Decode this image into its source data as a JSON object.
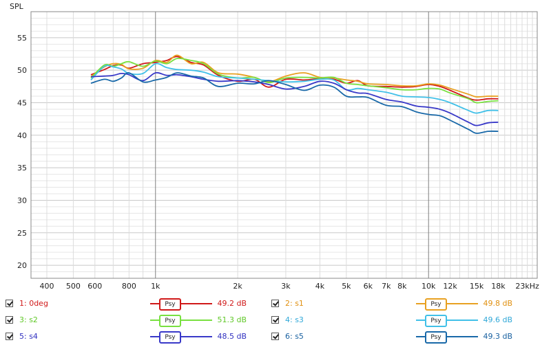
{
  "chart_data": {
    "type": "line",
    "ylabel": "SPL",
    "xlabel": "",
    "x_scale": "log",
    "xlim": [
      350,
      25000
    ],
    "ylim": [
      18,
      59
    ],
    "y_ticks": [
      20,
      25,
      30,
      35,
      40,
      45,
      50,
      55
    ],
    "x_tick_labels": [
      {
        "f": 400,
        "t": "400"
      },
      {
        "f": 500,
        "t": "500"
      },
      {
        "f": 600,
        "t": "600"
      },
      {
        "f": 800,
        "t": "800"
      },
      {
        "f": 1000,
        "t": "1k"
      },
      {
        "f": 2000,
        "t": "2k"
      },
      {
        "f": 3000,
        "t": "3k"
      },
      {
        "f": 4000,
        "t": "4k"
      },
      {
        "f": 5000,
        "t": "5k"
      },
      {
        "f": 6000,
        "t": "6k"
      },
      {
        "f": 7000,
        "t": "7k"
      },
      {
        "f": 8000,
        "t": "8k"
      },
      {
        "f": 10000,
        "t": "10k"
      },
      {
        "f": 12000,
        "t": "12k"
      },
      {
        "f": 15000,
        "t": "15k"
      },
      {
        "f": 18000,
        "t": "18k"
      },
      {
        "f": 23000,
        "t": "23kHz"
      }
    ],
    "grid": true,
    "series": [
      {
        "name": "1: 0deg",
        "color": "#d01818",
        "value_label": "49.2 dB",
        "x": [
          580,
          650,
          700,
          750,
          800,
          900,
          1000,
          1100,
          1200,
          1350,
          1500,
          1700,
          2000,
          2300,
          2600,
          3000,
          3500,
          4000,
          4500,
          5000,
          5500,
          6000,
          7000,
          8000,
          9000,
          10000,
          11000,
          12000,
          14000,
          15000,
          16500,
          18000
        ],
        "y": [
          49.3,
          50.1,
          50.7,
          50.8,
          50.3,
          51.0,
          51.2,
          51.5,
          52.1,
          51.2,
          50.8,
          49.2,
          48.3,
          48.6,
          47.4,
          48.6,
          48.5,
          48.7,
          48.6,
          48.0,
          48.4,
          47.6,
          47.5,
          47.4,
          47.5,
          47.8,
          47.5,
          46.9,
          45.7,
          45.4,
          45.6,
          45.6
        ]
      },
      {
        "name": "2: s1",
        "color": "#e8a020",
        "value_label": "49.8 dB",
        "x": [
          580,
          650,
          700,
          750,
          800,
          900,
          1000,
          1100,
          1200,
          1350,
          1500,
          1700,
          2000,
          2300,
          2600,
          3000,
          3500,
          4000,
          4500,
          5000,
          5500,
          6000,
          7000,
          8000,
          9000,
          10000,
          11000,
          12000,
          14000,
          15000,
          16500,
          18000
        ],
        "y": [
          49.0,
          50.5,
          51.0,
          50.9,
          50.2,
          50.3,
          51.5,
          51.2,
          52.3,
          51.0,
          51.2,
          49.6,
          49.4,
          48.9,
          48.2,
          49.1,
          49.6,
          48.9,
          48.8,
          48.5,
          48.3,
          47.9,
          47.8,
          47.6,
          47.6,
          47.9,
          47.7,
          47.2,
          46.3,
          45.9,
          46.0,
          46.0
        ]
      },
      {
        "name": "3: s2",
        "color": "#78e040",
        "value_label": "51.3 dB",
        "x": [
          580,
          650,
          700,
          750,
          800,
          900,
          1000,
          1100,
          1200,
          1350,
          1500,
          1700,
          2000,
          2300,
          2600,
          3000,
          3500,
          4000,
          4500,
          5000,
          5500,
          6000,
          7000,
          8000,
          9000,
          10000,
          11000,
          12000,
          14000,
          15000,
          16500,
          18000
        ],
        "y": [
          48.8,
          50.8,
          50.6,
          51.0,
          51.3,
          50.6,
          51.4,
          51.0,
          51.8,
          51.5,
          51.0,
          49.4,
          48.8,
          48.9,
          48.1,
          48.8,
          48.9,
          48.8,
          48.9,
          48.0,
          47.8,
          47.6,
          47.3,
          47.0,
          47.0,
          47.2,
          47.1,
          46.5,
          45.6,
          45.0,
          45.2,
          45.3
        ]
      },
      {
        "name": "4: s3",
        "color": "#40c0e8",
        "value_label": "49.6 dB",
        "x": [
          580,
          650,
          700,
          750,
          800,
          900,
          1000,
          1100,
          1200,
          1350,
          1500,
          1700,
          2000,
          2300,
          2600,
          3000,
          3500,
          4000,
          4500,
          5000,
          5500,
          6000,
          7000,
          8000,
          9000,
          10000,
          11000,
          12000,
          14000,
          15000,
          16500,
          18000
        ],
        "y": [
          48.5,
          50.6,
          50.5,
          50.2,
          49.5,
          49.5,
          51.0,
          50.4,
          50.1,
          50.0,
          49.7,
          49.0,
          48.8,
          48.6,
          48.4,
          48.2,
          48.3,
          48.6,
          48.5,
          47.0,
          47.2,
          47.0,
          46.6,
          46.0,
          45.9,
          45.8,
          45.5,
          45.0,
          43.8,
          43.4,
          43.8,
          43.8
        ]
      },
      {
        "name": "5: s4",
        "color": "#3838c8",
        "value_label": "48.5 dB",
        "x": [
          580,
          650,
          700,
          750,
          800,
          900,
          1000,
          1100,
          1200,
          1350,
          1500,
          1700,
          2000,
          2300,
          2600,
          3000,
          3500,
          4000,
          4500,
          5000,
          5500,
          6000,
          7000,
          8000,
          9000,
          10000,
          11000,
          12000,
          14000,
          15000,
          16500,
          18000
        ],
        "y": [
          49.0,
          49.1,
          49.2,
          49.5,
          49.3,
          48.4,
          49.6,
          49.2,
          49.3,
          49.0,
          48.6,
          48.3,
          48.4,
          48.2,
          47.8,
          47.1,
          47.5,
          48.3,
          48.0,
          47.0,
          46.5,
          46.4,
          45.5,
          45.1,
          44.5,
          44.3,
          44.0,
          43.4,
          42.0,
          41.5,
          41.9,
          42.0
        ]
      },
      {
        "name": "6: s5",
        "color": "#1868a8",
        "value_label": "49.3 dB",
        "x": [
          580,
          650,
          700,
          750,
          800,
          900,
          1000,
          1100,
          1200,
          1350,
          1500,
          1700,
          2000,
          2300,
          2600,
          3000,
          3500,
          4000,
          4500,
          5000,
          5500,
          6000,
          7000,
          8000,
          9000,
          10000,
          11000,
          12000,
          14000,
          15000,
          16500,
          18000
        ],
        "y": [
          48.0,
          48.6,
          48.3,
          48.8,
          49.6,
          48.2,
          48.5,
          48.9,
          49.6,
          49.1,
          48.8,
          47.5,
          48.0,
          47.9,
          48.4,
          47.8,
          46.9,
          47.7,
          47.4,
          46.0,
          45.9,
          45.8,
          44.6,
          44.4,
          43.6,
          43.2,
          43.0,
          42.3,
          40.9,
          40.3,
          40.6,
          40.6
        ]
      }
    ]
  },
  "legend": [
    {
      "label": "1: 0deg",
      "psy": "Psy",
      "value": "49.2 dB",
      "color": "#d01818",
      "text_color": "#d01818"
    },
    {
      "label": "2: s1",
      "psy": "Psy",
      "value": "49.8 dB",
      "color": "#e8a020",
      "text_color": "#e09010"
    },
    {
      "label": "3: s2",
      "psy": "Psy",
      "value": "51.3 dB",
      "color": "#78e040",
      "text_color": "#60c828"
    },
    {
      "label": "4: s3",
      "psy": "Psy",
      "value": "49.6 dB",
      "color": "#40c0e8",
      "text_color": "#30a8d8"
    },
    {
      "label": "5: s4",
      "psy": "Psy",
      "value": "48.5 dB",
      "color": "#3838c8",
      "text_color": "#3030c0"
    },
    {
      "label": "6: s5",
      "psy": "Psy",
      "value": "49.3 dB",
      "color": "#1868a8",
      "text_color": "#1860a0"
    }
  ]
}
